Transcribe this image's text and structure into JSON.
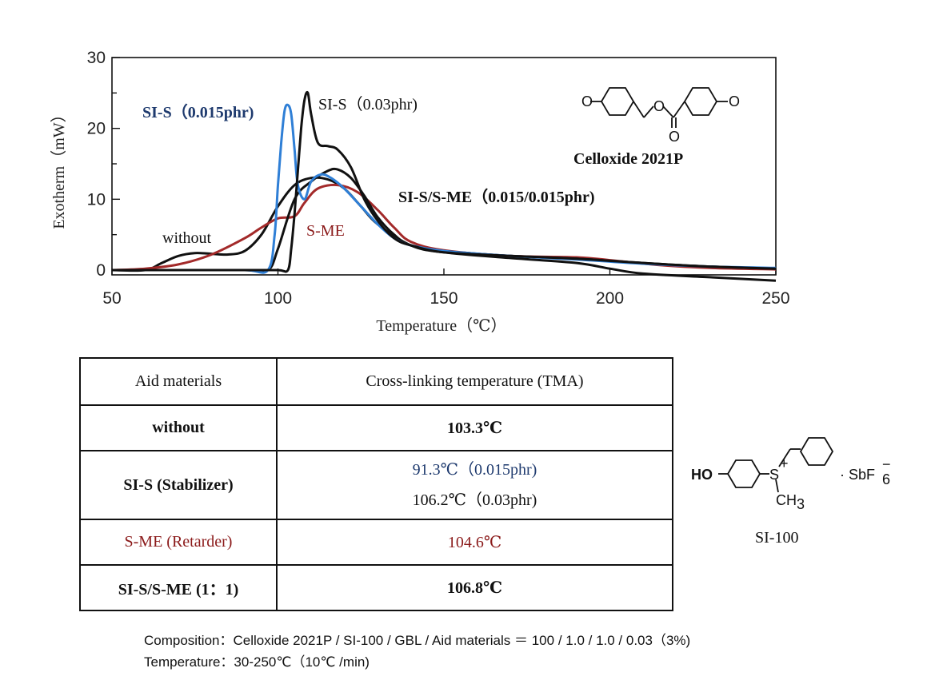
{
  "chart_data": {
    "type": "line",
    "xlabel": "Temperature（℃）",
    "ylabel": "Exotherm（mW）",
    "xlim": [
      50,
      250
    ],
    "ylim": [
      0,
      30
    ],
    "xticks": [
      50,
      100,
      150,
      200,
      250
    ],
    "yticks": [
      0,
      10,
      20,
      30
    ],
    "series": [
      {
        "name": "SI-S（0.015phr)",
        "color": "#2f7fd6",
        "x": [
          50,
          70,
          90,
          97,
          99,
          100,
          101,
          102,
          103,
          104,
          105,
          106,
          108,
          110,
          113,
          116,
          120,
          125,
          130,
          135,
          140,
          150,
          170,
          190,
          210,
          230,
          250
        ],
        "y": [
          0,
          0,
          0,
          0,
          5,
          12,
          18,
          22.5,
          23.3,
          22,
          17,
          12,
          10,
          12.5,
          13.5,
          13,
          11.5,
          9,
          6.5,
          4.5,
          3.5,
          2.7,
          2,
          1.5,
          0.9,
          0.5,
          0.3
        ]
      },
      {
        "name": "SI-S（0.03phr)",
        "color": "#111111",
        "x": [
          50,
          70,
          90,
          100,
          103,
          104,
          105,
          106,
          107,
          108,
          109,
          110,
          112,
          115,
          118,
          122,
          126,
          130,
          135,
          140,
          150,
          170,
          190,
          210,
          230,
          250
        ],
        "y": [
          0,
          0,
          0,
          0,
          0,
          3,
          8,
          14,
          20,
          24,
          25,
          22,
          18,
          17.5,
          17,
          14.5,
          10,
          7,
          4.5,
          3.5,
          2.5,
          2,
          1.6,
          1,
          0.5,
          0.2
        ]
      },
      {
        "name": "SI-S/S-ME（0.015/0.015phr)",
        "color": "#111111",
        "x": [
          50,
          70,
          90,
          97,
          100,
          105,
          110,
          115,
          118,
          122,
          126,
          130,
          135,
          140,
          150,
          170,
          190,
          210,
          230,
          250
        ],
        "y": [
          0,
          0,
          0,
          0,
          3,
          10,
          12.5,
          14,
          14.2,
          13,
          10.5,
          7.5,
          5,
          3.5,
          2.7,
          2,
          1.6,
          1,
          0.5,
          0.2
        ]
      },
      {
        "name": "S-ME",
        "color": "#a32a2a",
        "x": [
          50,
          60,
          70,
          80,
          90,
          95,
          100,
          105,
          108,
          112,
          118,
          124,
          130,
          135,
          140,
          150,
          170,
          190,
          200,
          215,
          230,
          250
        ],
        "y": [
          0,
          0.2,
          0.8,
          2.2,
          4.5,
          6,
          7.3,
          7.6,
          9.5,
          11.5,
          12,
          11,
          8.5,
          6,
          4,
          2.8,
          2,
          1.8,
          1.4,
          0.7,
          0.3,
          0.1
        ]
      },
      {
        "name": "without",
        "color": "#111111",
        "x": [
          50,
          60,
          65,
          70,
          75,
          80,
          85,
          90,
          95,
          100,
          105,
          110,
          115,
          120,
          125,
          130,
          140,
          150,
          170,
          190,
          200,
          210,
          230,
          250
        ],
        "y": [
          0,
          0,
          1,
          2,
          2.4,
          2.3,
          2.2,
          2.7,
          5,
          9,
          12,
          13,
          12.8,
          11.5,
          9,
          6.5,
          3.5,
          2.5,
          1.7,
          1,
          0.2,
          -0.5,
          -1,
          -1.5
        ]
      }
    ],
    "annotations": {
      "si_s_015": "SI-S（0.015phr)",
      "si_s_03": "SI-S（0.03phr)",
      "si_s_sme": "SI-S/S-ME（0.015/0.015phr)",
      "s_me": "S-ME",
      "without": "without",
      "celloxide": "Celloxide 2021P"
    }
  },
  "table": {
    "header": {
      "col1": "Aid materials",
      "col2": "Cross-linking temperature (TMA)"
    },
    "rows": [
      {
        "aid": "without",
        "temp": "103.3℃"
      },
      {
        "aid": "SI-S (Stabilizer)",
        "temp_a": "91.3℃（0.015phr)",
        "temp_b": "106.2℃（0.03phr)"
      },
      {
        "aid": "S-ME (Retarder)",
        "temp": "104.6℃"
      },
      {
        "aid": "SI-S/S-ME (1：1)",
        "temp": "106.8℃"
      }
    ]
  },
  "molecule": {
    "name": "SI-100",
    "ho": "HO",
    "s": "S",
    "plus": "+",
    "ch3": "CH",
    "ch3_sub": "3",
    "sbf6": "· SbF",
    "sbf6_sub": "6",
    "sbf6_sup": "−"
  },
  "celloxide_o": "O",
  "notes": {
    "composition": "Composition：Celloxide 2021P / SI-100 / GBL / Aid materials ＝ 100 / 1.0 / 1.0 / 0.03（3%)",
    "temperature": "Temperature：30-250℃（10℃ /min)"
  }
}
